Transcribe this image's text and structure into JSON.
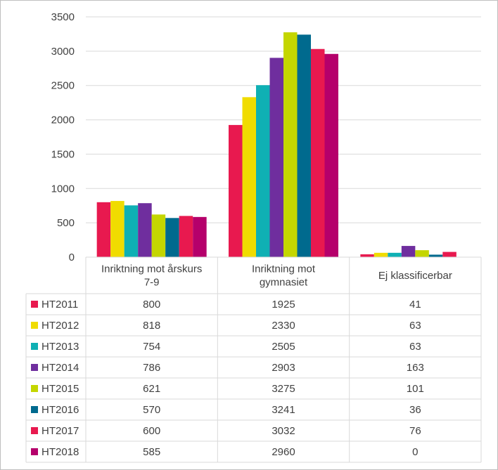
{
  "chart_data": {
    "type": "bar",
    "title": "",
    "xlabel": "",
    "ylabel": "",
    "ylim": [
      0,
      3500
    ],
    "yticks": [
      "0",
      "500",
      "1000",
      "1500",
      "2000",
      "2500",
      "3000",
      "3500"
    ],
    "grid": true,
    "legend": "data-table",
    "categories": [
      [
        "Inriktning mot årskurs",
        "7-9"
      ],
      [
        "Inriktning mot",
        "gymnasiet"
      ],
      [
        "Ej klassificerbar"
      ]
    ],
    "series": [
      {
        "name": "HT2011",
        "color": "#e8194f",
        "values": [
          800,
          1925,
          41
        ]
      },
      {
        "name": "HT2012",
        "color": "#f0dc00",
        "values": [
          818,
          2330,
          63
        ]
      },
      {
        "name": "HT2013",
        "color": "#0fb0b4",
        "values": [
          754,
          2505,
          63
        ]
      },
      {
        "name": "HT2014",
        "color": "#6f2e9e",
        "values": [
          786,
          2903,
          163
        ]
      },
      {
        "name": "HT2015",
        "color": "#c4d600",
        "values": [
          621,
          3275,
          101
        ]
      },
      {
        "name": "HT2016",
        "color": "#006a8e",
        "values": [
          570,
          3241,
          36
        ]
      },
      {
        "name": "HT2017",
        "color": "#e8194f",
        "values": [
          600,
          3032,
          76
        ]
      },
      {
        "name": "HT2018",
        "color": "#b5006b",
        "values": [
          585,
          2960,
          0
        ]
      }
    ]
  }
}
